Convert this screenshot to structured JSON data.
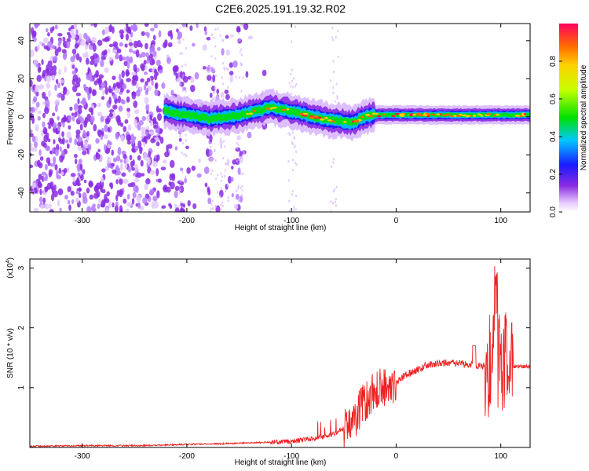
{
  "figure_title": "C2E6.2025.191.19.32.R02",
  "chart_data": [
    {
      "type": "heatmap",
      "title": "C2E6.2025.191.19.32.R02",
      "xlabel": "Height of straight line (km)",
      "ylabel": "Frequency (Hz)",
      "xlim": [
        -350,
        128
      ],
      "ylim": [
        -50,
        49
      ],
      "xticks": [
        -300,
        -200,
        -100,
        0,
        100
      ],
      "yticks": [
        -40,
        -20,
        0,
        20,
        40
      ],
      "colorbar": {
        "label": "Normalized spectral amplitude",
        "range": [
          0.0,
          1.0
        ],
        "ticks": [
          0.0,
          0.2,
          0.4,
          0.6,
          0.8
        ]
      },
      "ridge_center_hz": {
        "x": [
          -220,
          -200,
          -180,
          -160,
          -140,
          -120,
          -100,
          -80,
          -60,
          -40,
          -30,
          -20,
          0,
          20,
          40,
          60,
          80,
          100,
          120,
          128
        ],
        "y": [
          3,
          1,
          -1,
          0,
          2,
          5,
          3,
          0,
          -2,
          -3,
          0,
          1,
          1,
          1,
          1,
          1,
          1,
          1,
          1,
          1
        ]
      },
      "noise_region_km": [
        -350,
        -145
      ]
    },
    {
      "type": "line",
      "xlabel": "Height of straight line (km)",
      "ylabel": "SNR (10 * v/v)",
      "y_multiplier": "(x10",
      "y_multiplier_exp": "4",
      "xlim": [
        -350,
        128
      ],
      "ylim": [
        0,
        3.15
      ],
      "xticks": [
        -300,
        -200,
        -100,
        0,
        100
      ],
      "yticks": [
        1,
        2,
        3
      ],
      "color": "#ee2222",
      "series": [
        {
          "x": [
            -350,
            -300,
            -250,
            -200,
            -150,
            -100,
            -80,
            -60,
            -50,
            -40,
            -30,
            -20,
            -10,
            0,
            10,
            20,
            30,
            40,
            50,
            60,
            70,
            80,
            90,
            100,
            110,
            128
          ],
          "y": [
            0.02,
            0.03,
            0.03,
            0.05,
            0.07,
            0.1,
            0.15,
            0.22,
            0.32,
            0.48,
            0.75,
            0.95,
            1.02,
            1.1,
            1.22,
            1.3,
            1.38,
            1.4,
            1.42,
            1.4,
            1.38,
            1.36,
            1.37,
            1.38,
            1.36,
            1.35
          ]
        }
      ]
    }
  ]
}
